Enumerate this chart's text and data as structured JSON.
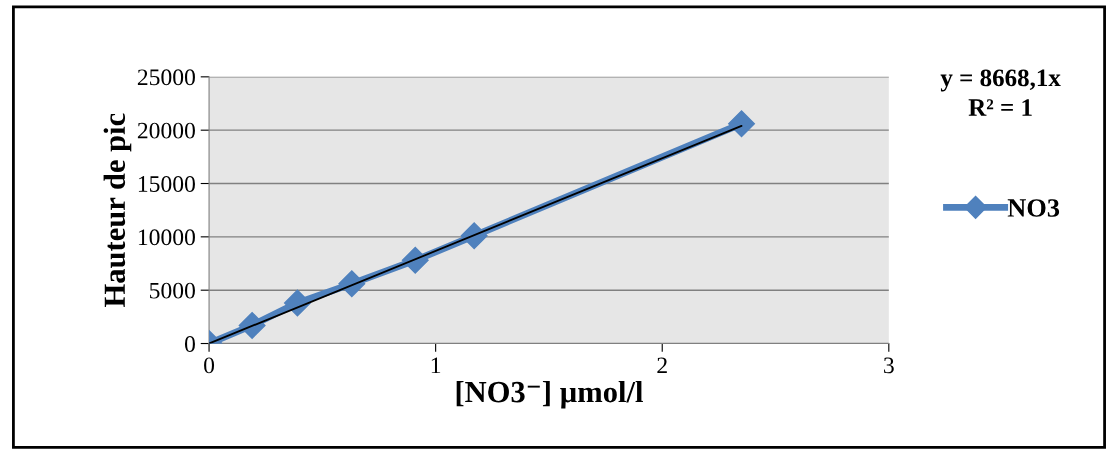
{
  "chart_data": {
    "type": "line",
    "xlabel": "[NO3⁻] µmol/l",
    "ylabel": "Hauteur de pic",
    "series": [
      {
        "name": "NO3",
        "color": "#4f81bd",
        "x": [
          0,
          0.19,
          0.39,
          0.63,
          0.91,
          1.17,
          2.35
        ],
        "values": [
          0,
          1700,
          3800,
          5600,
          7800,
          10100,
          20600
        ],
        "marker": "diamond"
      },
      {
        "type": "line",
        "color": "#000000",
        "x": [
          0,
          2.35
        ],
        "values": [
          0,
          20400
        ],
        "marker": "none"
      }
    ],
    "annotations": [
      "y = 8668,1x\nR² = 1"
    ],
    "xlim": [
      0,
      3
    ],
    "xticks": [
      0,
      1,
      2,
      3
    ],
    "ylim": [
      0,
      25000
    ],
    "yticks": [
      0,
      5000,
      10000,
      15000,
      20000,
      25000
    ],
    "grid": "y",
    "legend": "right"
  }
}
